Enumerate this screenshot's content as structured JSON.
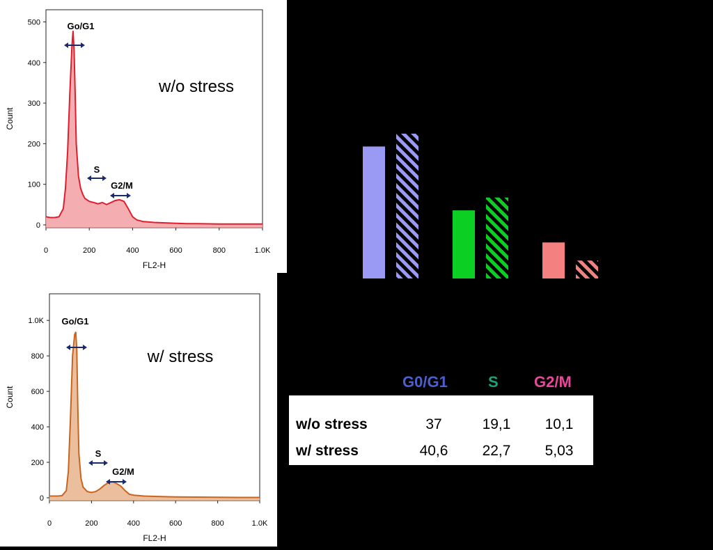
{
  "histograms": [
    {
      "annotation": "w/o stress",
      "ylabel": "Count",
      "xlabel": "FL2-H",
      "yticks": [
        "0",
        "100",
        "200",
        "300",
        "400",
        "500"
      ],
      "xticks": [
        "0",
        "200",
        "400",
        "600",
        "800",
        "1.0K"
      ],
      "gates": [
        "Go/G1",
        "S",
        "G2/M"
      ],
      "line_color": "#e01e2b",
      "fill_color": "#f2a0a4"
    },
    {
      "annotation": "w/ stress",
      "ylabel": "Count",
      "xlabel": "FL2-H",
      "yticks": [
        "0",
        "200",
        "400",
        "600",
        "800",
        "1.0K"
      ],
      "xticks": [
        "0",
        "200",
        "400",
        "600",
        "800",
        "1.0K"
      ],
      "gates": [
        "Go/G1",
        "S",
        "G2/M"
      ],
      "line_color": "#c8641e",
      "fill_color": "#e8b48c"
    }
  ],
  "table": {
    "headers": [
      "G0/G1",
      "S",
      "G2/M"
    ],
    "header_colors": [
      "#4b5fd0",
      "#18a37a",
      "#e8489a"
    ],
    "rows": [
      {
        "label": "w/o stress",
        "values": [
          "37",
          "19,1",
          "10,1"
        ]
      },
      {
        "label": "w/ stress",
        "values": [
          "40,6",
          "22,7",
          "5,03"
        ]
      }
    ]
  },
  "chart_data": [
    {
      "type": "area",
      "title": "w/o stress",
      "xlabel": "FL2-H",
      "ylabel": "Count",
      "xlim": [
        0,
        1000
      ],
      "ylim": [
        0,
        530
      ],
      "x": [
        0,
        20,
        40,
        60,
        80,
        90,
        100,
        110,
        120,
        125,
        130,
        135,
        140,
        150,
        160,
        170,
        180,
        200,
        220,
        240,
        260,
        280,
        300,
        320,
        340,
        360,
        380,
        400,
        420,
        450,
        500,
        550,
        600,
        650,
        700,
        800,
        900,
        1000
      ],
      "y": [
        20,
        18,
        18,
        20,
        40,
        90,
        180,
        320,
        440,
        478,
        430,
        320,
        200,
        120,
        90,
        75,
        65,
        58,
        55,
        52,
        55,
        50,
        55,
        60,
        62,
        58,
        40,
        20,
        12,
        8,
        6,
        5,
        4,
        3,
        3,
        2,
        2,
        2
      ]
    },
    {
      "type": "area",
      "title": "w/ stress",
      "xlabel": "FL2-H",
      "ylabel": "Count",
      "xlim": [
        0,
        1000
      ],
      "ylim": [
        0,
        1150
      ],
      "x": [
        0,
        20,
        40,
        60,
        80,
        90,
        100,
        110,
        120,
        125,
        130,
        135,
        140,
        150,
        160,
        180,
        200,
        220,
        240,
        260,
        280,
        300,
        320,
        340,
        360,
        380,
        400,
        450,
        500,
        600,
        700,
        800,
        900,
        1000
      ],
      "y": [
        10,
        10,
        10,
        12,
        40,
        150,
        450,
        800,
        920,
        935,
        830,
        500,
        250,
        110,
        60,
        35,
        30,
        35,
        50,
        70,
        85,
        90,
        80,
        65,
        40,
        20,
        15,
        10,
        8,
        5,
        4,
        3,
        2,
        2
      ]
    },
    {
      "type": "bar",
      "categories": [
        "G0/G1",
        "S",
        "G2/M"
      ],
      "series": [
        {
          "name": "w/o stress",
          "values": [
            37,
            19.1,
            10.1
          ]
        },
        {
          "name": "w/ stress",
          "values": [
            40.6,
            22.7,
            5.03
          ]
        }
      ],
      "colors": [
        "#9a9af5",
        "#0ccf24",
        "#f58080"
      ],
      "ylim": [
        0,
        45
      ]
    }
  ]
}
